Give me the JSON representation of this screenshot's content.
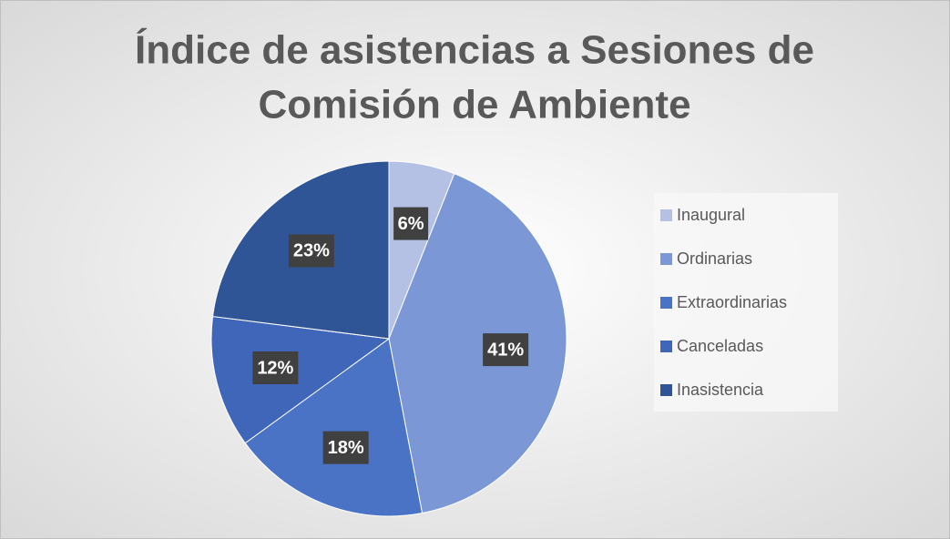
{
  "chart_data": {
    "type": "pie",
    "title": [
      "Índice de asistencias a Sesiones de",
      "Comisión de Ambiente"
    ],
    "categories": [
      "Inaugural",
      "Ordinarias",
      "Extraordinarias",
      "Canceladas",
      "Inasistencia"
    ],
    "values": [
      6,
      41,
      18,
      12,
      23
    ],
    "value_labels": [
      "6%",
      "41%",
      "18%",
      "12%",
      "23%"
    ],
    "colors": [
      "#b4c0e4",
      "#7b97d5",
      "#4a72c5",
      "#3f66b8",
      "#2f5597"
    ],
    "legend": "right"
  }
}
